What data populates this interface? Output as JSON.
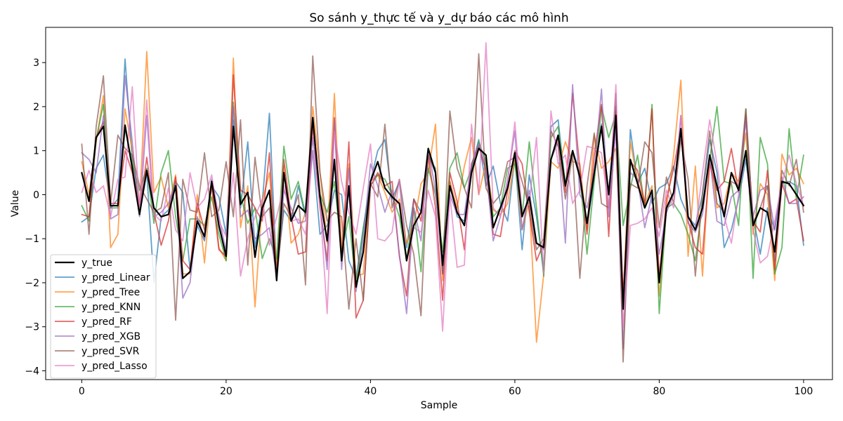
{
  "chart_data": {
    "type": "line",
    "title": "So sánh y_thực tế và y_dự báo các mô hình",
    "xlabel": "Sample",
    "ylabel": "Value",
    "xlim": [
      -5,
      104
    ],
    "ylim": [
      -4.2,
      3.8
    ],
    "xticks": [
      0,
      20,
      40,
      60,
      80,
      100
    ],
    "yticks": [
      -4,
      -3,
      -2,
      -1,
      0,
      1,
      2,
      3
    ],
    "grid": false,
    "legend_position": "lower-left",
    "series": [
      {
        "name": "y_true",
        "color": "#000000",
        "alpha": 1,
        "width": 2.2,
        "values": [
          0.5,
          -0.15,
          1.3,
          1.55,
          -0.25,
          -0.25,
          1.58,
          0.6,
          -0.45,
          0.55,
          -0.3,
          -0.5,
          -0.45,
          0.2,
          -1.9,
          -1.75,
          -0.6,
          -0.95,
          0.3,
          -0.7,
          -1.4,
          1.55,
          -0.22,
          0.05,
          -1.42,
          -0.3,
          0.1,
          -1.95,
          0.5,
          -0.6,
          -0.25,
          -0.4,
          1.75,
          -0.05,
          -1.05,
          0.8,
          -1.5,
          0.2,
          -2.1,
          -1.3,
          0.3,
          0.75,
          0.15,
          -0.05,
          -0.2,
          -1.5,
          -0.7,
          -0.4,
          1.05,
          0.5,
          -1.6,
          0.2,
          -0.4,
          -0.7,
          0.5,
          1.05,
          0.9,
          -0.75,
          -0.3,
          0.15,
          0.95,
          -0.5,
          -0.05,
          -1.1,
          -1.2,
          0.8,
          1.35,
          0.2,
          1.0,
          0.4,
          -0.65,
          0.5,
          1.55,
          0.0,
          1.8,
          -2.6,
          0.8,
          0.25,
          -0.3,
          0.1,
          -2.0,
          -0.3,
          0.05,
          1.5,
          -0.5,
          -0.8,
          -0.3,
          0.9,
          0.2,
          -0.5,
          0.5,
          0.1,
          1.0,
          -0.7,
          -0.3,
          -0.4,
          -1.3,
          0.3,
          0.25,
          0.0,
          -0.25
        ]
      },
      {
        "name": "y_pred_Linear",
        "color": "#1f77b4",
        "alpha": 0.7,
        "width": 1.8,
        "values": [
          -0.62,
          -0.5,
          0.6,
          0.9,
          -0.3,
          -0.1,
          3.08,
          0.8,
          -0.2,
          0.5,
          -2.0,
          -0.5,
          -0.35,
          0.3,
          0.05,
          -1.7,
          -0.7,
          -1.05,
          0.2,
          -0.05,
          -0.9,
          1.7,
          -0.3,
          1.2,
          -1.2,
          -0.2,
          1.85,
          -1.8,
          -0.35,
          -0.6,
          0.2,
          -0.5,
          1.0,
          -0.9,
          -0.7,
          0.1,
          0.0,
          -1.5,
          -1.9,
          -0.75,
          0.3,
          1.0,
          1.25,
          -0.1,
          0.3,
          -1.2,
          -0.1,
          -0.4,
          0.85,
          0.6,
          -1.8,
          0.3,
          -0.5,
          -0.6,
          0.6,
          1.25,
          0.2,
          0.65,
          -0.2,
          -0.6,
          0.85,
          -1.25,
          0.45,
          -0.5,
          -1.7,
          1.55,
          1.7,
          0.2,
          1.0,
          0.5,
          -0.75,
          0.4,
          1.6,
          0.0,
          2.0,
          -2.6,
          1.48,
          0.25,
          0.6,
          -0.2,
          0.15,
          0.25,
          0.65,
          -0.1,
          -0.5,
          -0.7,
          0.0,
          1.25,
          0.5,
          -1.2,
          -0.8,
          -0.1,
          0.8,
          -0.5,
          -1.35,
          -0.3,
          -0.8,
          0.25,
          0.3,
          0.2,
          -1.15
        ]
      },
      {
        "name": "y_pred_Tree",
        "color": "#ff7f0e",
        "alpha": 0.7,
        "width": 1.8,
        "values": [
          0.75,
          0.0,
          1.2,
          2.25,
          -1.2,
          -0.9,
          1.95,
          1.0,
          -0.3,
          3.25,
          0.05,
          0.4,
          -0.3,
          0.45,
          -1.8,
          -1.8,
          0.0,
          -1.55,
          0.3,
          -1.2,
          -1.5,
          3.1,
          -0.75,
          0.2,
          -2.55,
          -0.15,
          0.5,
          -1.65,
          0.65,
          -1.1,
          -0.9,
          -0.4,
          2.0,
          0.5,
          -1.1,
          2.3,
          -1.25,
          0.7,
          -1.85,
          -1.8,
          0.3,
          0.45,
          0.05,
          -0.4,
          -0.1,
          -1.1,
          -0.7,
          0.25,
          0.5,
          1.6,
          -1.95,
          0.3,
          -0.3,
          0.65,
          1.3,
          0.0,
          0.75,
          -0.35,
          -0.45,
          -0.2,
          0.85,
          -0.8,
          -0.15,
          -3.35,
          -1.8,
          0.75,
          0.6,
          1.2,
          0.75,
          0.7,
          -0.8,
          1.35,
          0.6,
          0.75,
          1.05,
          -2.35,
          1.2,
          0.3,
          -0.2,
          0.2,
          -2.3,
          -0.3,
          0.9,
          2.6,
          -1.4,
          0.65,
          -1.85,
          0.9,
          -0.3,
          -0.2,
          0.5,
          0.3,
          1.4,
          -0.9,
          0.25,
          0.0,
          -1.95,
          0.92,
          0.45,
          0.6,
          0.25
        ]
      },
      {
        "name": "y_pred_KNN",
        "color": "#2ca02c",
        "alpha": 0.7,
        "width": 1.8,
        "values": [
          -0.25,
          -0.6,
          1.25,
          2.05,
          -0.3,
          -0.3,
          1.5,
          0.7,
          0.1,
          0.6,
          -0.65,
          0.5,
          1.0,
          -0.5,
          -1.5,
          -0.55,
          -0.55,
          -0.7,
          -0.05,
          -0.9,
          -1.5,
          2.1,
          0.0,
          -0.65,
          -0.3,
          -1.45,
          -1.0,
          -1.45,
          1.1,
          -0.1,
          0.3,
          -0.45,
          1.75,
          0.0,
          -0.4,
          0.3,
          -1.3,
          -0.5,
          -2.1,
          -0.8,
          0.2,
          0.45,
          0.35,
          0.0,
          -0.5,
          -1.5,
          -0.3,
          -1.75,
          0.6,
          0.0,
          -1.3,
          0.6,
          0.95,
          0.15,
          0.6,
          1.2,
          0.75,
          -0.5,
          -0.3,
          0.6,
          0.7,
          -0.5,
          1.2,
          -0.3,
          -1.85,
          1.3,
          1.55,
          0.25,
          1.0,
          0.45,
          -1.35,
          0.3,
          2.0,
          1.3,
          1.85,
          -0.7,
          0.15,
          0.9,
          -0.3,
          2.05,
          -2.7,
          -0.3,
          -0.2,
          -0.45,
          -0.9,
          -1.5,
          -0.2,
          0.8,
          2.0,
          0.3,
          0.25,
          -0.7,
          1.95,
          -1.9,
          1.3,
          0.7,
          -1.8,
          -1.2,
          1.5,
          -0.1,
          0.9
        ]
      },
      {
        "name": "y_pred_RF",
        "color": "#d62728",
        "alpha": 0.7,
        "width": 1.8,
        "values": [
          -0.45,
          -0.5,
          1.3,
          1.65,
          -0.2,
          -0.2,
          1.0,
          0.5,
          -0.45,
          0.85,
          -0.4,
          -1.15,
          -0.6,
          0.4,
          -1.5,
          -1.7,
          -0.2,
          -0.8,
          0.2,
          -1.25,
          -1.4,
          2.72,
          0.1,
          0.0,
          -0.3,
          -0.6,
          0.95,
          -1.95,
          0.8,
          -0.5,
          -1.35,
          -1.3,
          1.6,
          -0.3,
          -1.5,
          1.75,
          -1.5,
          1.2,
          -2.8,
          -2.4,
          0.2,
          0.5,
          0.2,
          0.3,
          -1.4,
          -2.3,
          -0.1,
          -0.6,
          0.9,
          -0.3,
          -2.4,
          0.5,
          -0.15,
          -1.25,
          0.7,
          1.1,
          0.55,
          -0.9,
          -0.95,
          0.1,
          1.0,
          0.7,
          -0.4,
          -1.5,
          -1.1,
          0.8,
          1.3,
          0.05,
          2.3,
          0.6,
          -0.9,
          0.9,
          2.05,
          -0.95,
          1.9,
          -2.3,
          0.75,
          0.55,
          -0.2,
          1.95,
          -1.9,
          -0.1,
          0.6,
          1.5,
          -0.6,
          -1.2,
          -1.35,
          0.7,
          0.1,
          0.3,
          1.05,
          0.05,
          1.8,
          -0.6,
          -0.85,
          0.55,
          -1.7,
          0.25,
          -0.2,
          -0.1,
          -1.05
        ]
      },
      {
        "name": "y_pred_XGB",
        "color": "#9467bd",
        "alpha": 0.7,
        "width": 1.8,
        "values": [
          0.95,
          0.8,
          0.5,
          1.8,
          -0.55,
          -0.45,
          2.7,
          1.2,
          -0.5,
          1.8,
          -0.5,
          -0.4,
          -0.2,
          0.25,
          -2.35,
          -2.0,
          -0.5,
          -1.0,
          0.35,
          -0.5,
          -1.3,
          2.0,
          -0.5,
          -0.35,
          -1.0,
          -0.9,
          -0.75,
          -1.85,
          0.1,
          -0.3,
          -0.65,
          -0.6,
          1.3,
          -0.15,
          -1.7,
          1.7,
          -1.7,
          0.6,
          -2.2,
          -1.0,
          0.7,
          0.2,
          -0.4,
          0.1,
          -1.35,
          -2.7,
          -0.3,
          -1.05,
          1.05,
          0.1,
          -1.8,
          0.0,
          -0.45,
          -0.45,
          0.7,
          1.15,
          0.6,
          -1.05,
          -0.5,
          0.35,
          1.45,
          -0.8,
          0.1,
          -1.1,
          -1.25,
          0.8,
          1.2,
          -1.1,
          2.5,
          0.0,
          -0.3,
          0.5,
          2.4,
          -0.5,
          1.5,
          -3.5,
          0.5,
          0.35,
          -0.75,
          0.0,
          -1.35,
          -0.4,
          0.0,
          1.8,
          -0.65,
          -0.85,
          -0.45,
          0.85,
          -0.6,
          -0.7,
          -0.05,
          0.1,
          1.7,
          -0.5,
          0.1,
          0.2,
          -0.8,
          0.4,
          -0.2,
          -0.2,
          -0.05
        ]
      },
      {
        "name": "y_pred_SVR",
        "color": "#8c564b",
        "alpha": 0.7,
        "width": 1.8,
        "values": [
          1.15,
          -0.9,
          1.55,
          2.7,
          -0.2,
          1.35,
          1.05,
          0.9,
          0.2,
          -0.1,
          -0.4,
          -0.3,
          0.5,
          -2.85,
          0.35,
          -0.35,
          -0.4,
          0.95,
          -0.5,
          -0.35,
          0.75,
          -0.5,
          1.7,
          -1.6,
          0.85,
          -0.5,
          -0.3,
          -1.95,
          -0.2,
          -0.5,
          0.0,
          -2.05,
          3.15,
          0.5,
          -0.6,
          -0.4,
          -0.5,
          -2.6,
          -1.0,
          -2.4,
          0.25,
          -0.05,
          1.6,
          -0.3,
          0.35,
          -0.7,
          -1.35,
          -2.75,
          0.9,
          0.5,
          -1.8,
          1.9,
          0.6,
          0.15,
          -0.3,
          3.2,
          0.15,
          -0.2,
          0.0,
          0.75,
          0.85,
          0.3,
          -0.3,
          -1.25,
          -1.0,
          1.45,
          1.1,
          -0.1,
          0.9,
          -1.9,
          0.2,
          1.4,
          -0.2,
          -0.3,
          2.3,
          -3.8,
          0.25,
          0.15,
          1.2,
          0.95,
          -0.75,
          0.4,
          -0.2,
          1.25,
          0.35,
          -1.85,
          0.05,
          1.45,
          -0.2,
          -0.4,
          0.3,
          0.2,
          1.95,
          -0.65,
          -0.3,
          0.2,
          -1.5,
          0.55,
          0.2,
          0.8,
          -0.4
        ]
      },
      {
        "name": "y_pred_Lasso",
        "color": "#e377c2",
        "alpha": 0.7,
        "width": 1.8,
        "values": [
          0.05,
          0.55,
          0.05,
          0.2,
          -0.5,
          0.35,
          0.4,
          2.45,
          -0.35,
          2.15,
          -0.45,
          -0.6,
          0.15,
          -0.8,
          -1.05,
          0.5,
          -0.3,
          -0.1,
          0.45,
          -0.6,
          -0.95,
          0.5,
          -1.85,
          -1.0,
          -0.5,
          -0.1,
          -1.15,
          -0.5,
          0.2,
          -0.6,
          -0.55,
          -0.9,
          1.0,
          -0.2,
          -2.7,
          1.45,
          0.3,
          -0.4,
          -0.9,
          0.15,
          1.15,
          -1.0,
          -1.05,
          -0.85,
          0.35,
          -1.5,
          -0.75,
          -0.85,
          0.1,
          -0.5,
          -3.1,
          0.0,
          -1.65,
          -1.6,
          1.6,
          0.0,
          3.45,
          -0.3,
          -0.5,
          0.3,
          1.65,
          -0.4,
          -0.2,
          1.3,
          -1.8,
          1.9,
          0.7,
          0.9,
          -0.2,
          0.1,
          1.1,
          1.05,
          0.95,
          -0.3,
          2.5,
          -3.0,
          -0.7,
          -0.65,
          -0.55,
          -0.3,
          -0.95,
          0.1,
          -0.3,
          1.8,
          -0.5,
          -0.8,
          0.5,
          1.7,
          0.7,
          -0.5,
          -1.1,
          0.0,
          0.95,
          -0.8,
          -1.55,
          -1.4,
          -0.6,
          0.25,
          0.9,
          0.25,
          -0.25
        ]
      }
    ]
  }
}
